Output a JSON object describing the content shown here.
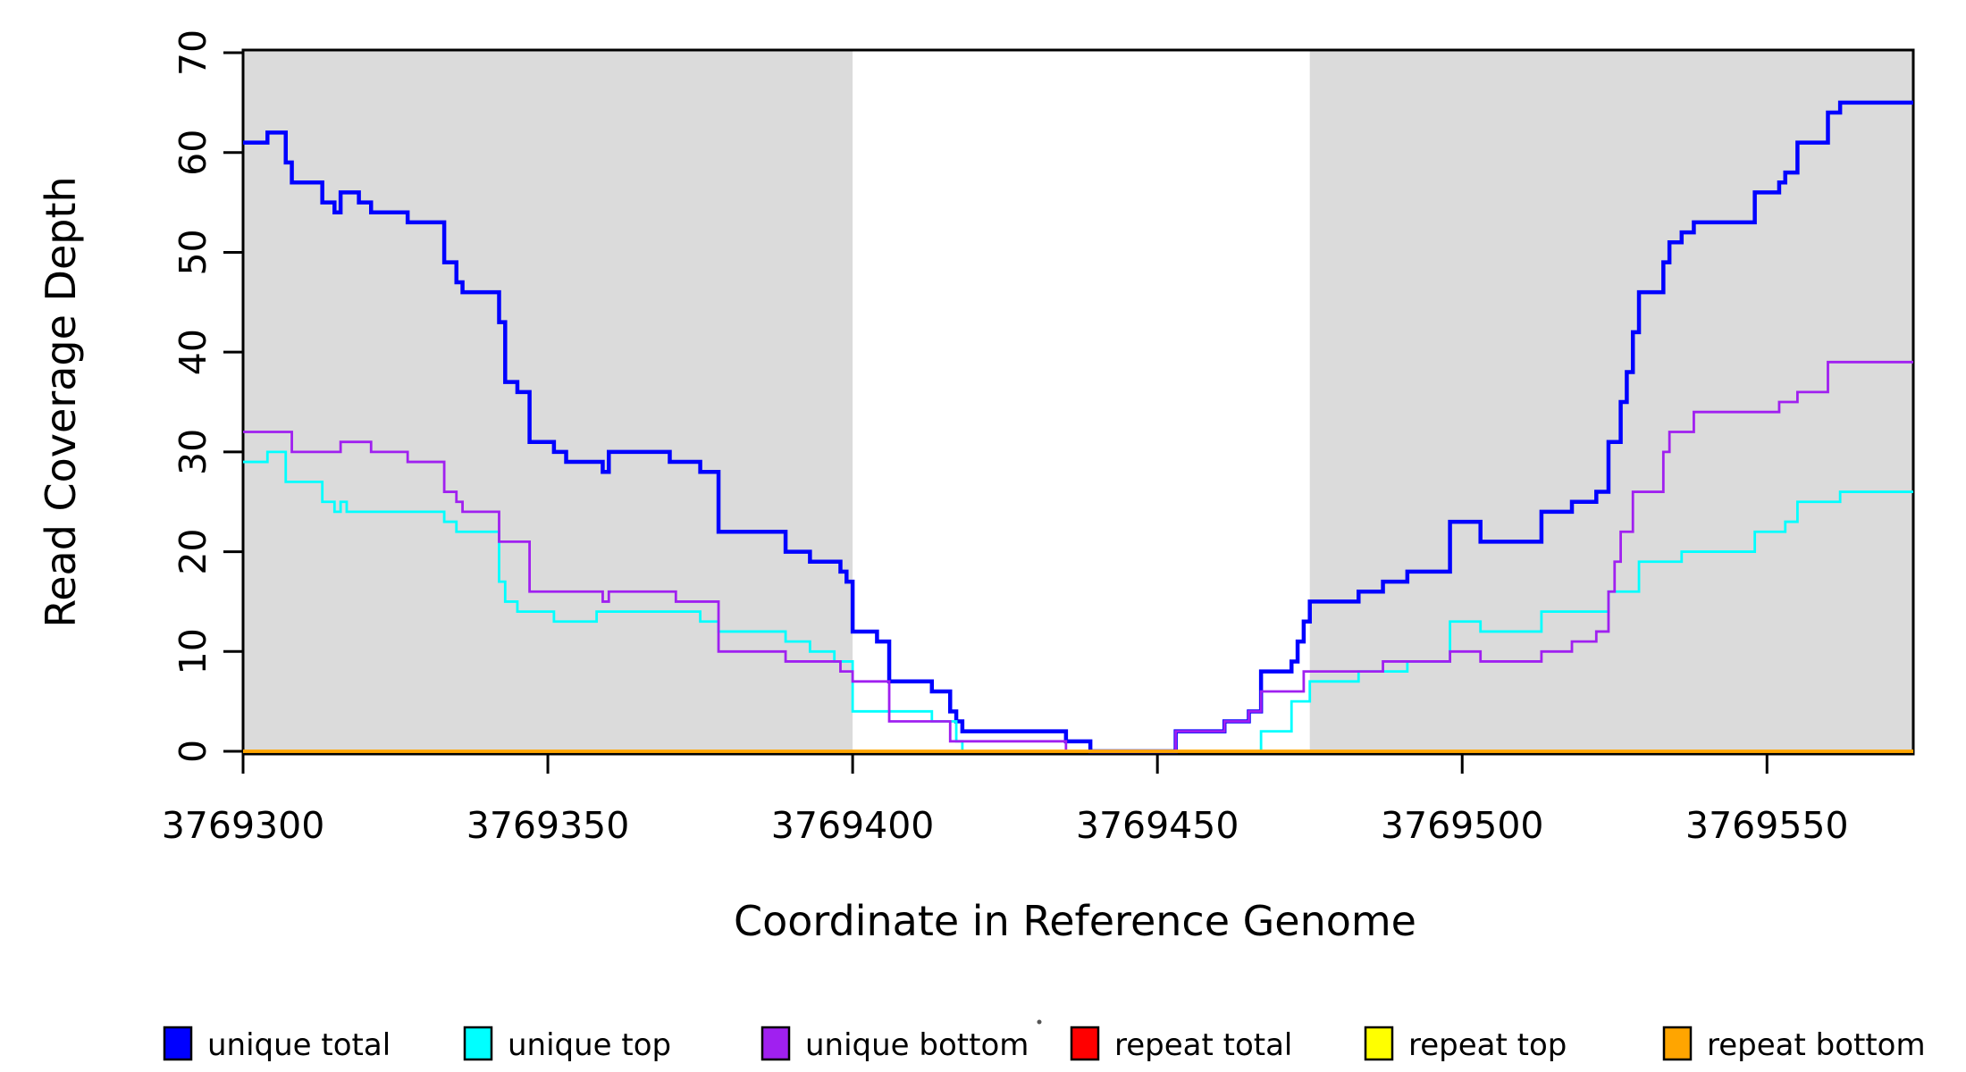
{
  "chart_data": {
    "type": "line",
    "subtype": "step",
    "title": "",
    "xlabel": "Coordinate in Reference Genome",
    "ylabel": "Read Coverage Depth",
    "xlim": [
      3769300,
      3769574
    ],
    "ylim": [
      0,
      70
    ],
    "grid": false,
    "background": "#FFFFFF",
    "x_ticks": [
      "3769300",
      "3769350",
      "3769400",
      "3769450",
      "3769500",
      "3769550"
    ],
    "x_tick_values": [
      3769300,
      3769350,
      3769400,
      3769450,
      3769500,
      3769550
    ],
    "y_ticks": [
      "0",
      "10",
      "20",
      "30",
      "40",
      "50",
      "60",
      "70"
    ],
    "y_tick_values": [
      0,
      10,
      20,
      30,
      40,
      50,
      60,
      70
    ],
    "shaded_regions": [
      {
        "from": 3769300,
        "to": 3769400,
        "color": "#DBDBDB"
      },
      {
        "from": 3769475,
        "to": 3769574,
        "color": "#DBDBDB"
      }
    ],
    "legend_position": "bottom",
    "series": [
      {
        "name": "unique total",
        "color": "#0000FF",
        "width": 4.5,
        "points": [
          [
            3769300,
            61
          ],
          [
            3769304,
            62
          ],
          [
            3769307,
            59
          ],
          [
            3769308,
            57
          ],
          [
            3769313,
            55
          ],
          [
            3769315,
            54
          ],
          [
            3769316,
            56
          ],
          [
            3769319,
            55
          ],
          [
            3769321,
            54
          ],
          [
            3769327,
            53
          ],
          [
            3769333,
            49
          ],
          [
            3769335,
            47
          ],
          [
            3769336,
            46
          ],
          [
            3769342,
            43
          ],
          [
            3769343,
            37
          ],
          [
            3769345,
            36
          ],
          [
            3769347,
            31
          ],
          [
            3769351,
            30
          ],
          [
            3769353,
            29
          ],
          [
            3769359,
            28
          ],
          [
            3769360,
            30
          ],
          [
            3769370,
            29
          ],
          [
            3769375,
            28
          ],
          [
            3769378,
            22
          ],
          [
            3769389,
            20
          ],
          [
            3769393,
            19
          ],
          [
            3769398,
            18
          ],
          [
            3769399,
            17
          ],
          [
            3769400,
            12
          ],
          [
            3769404,
            11
          ],
          [
            3769406,
            7
          ],
          [
            3769413,
            6
          ],
          [
            3769416,
            4
          ],
          [
            3769417,
            3
          ],
          [
            3769418,
            2
          ],
          [
            3769435,
            1
          ],
          [
            3769439,
            0
          ],
          [
            3769453,
            2
          ],
          [
            3769461,
            3
          ],
          [
            3769465,
            4
          ],
          [
            3769467,
            8
          ],
          [
            3769472,
            9
          ],
          [
            3769473,
            11
          ],
          [
            3769474,
            13
          ],
          [
            3769475,
            15
          ],
          [
            3769483,
            16
          ],
          [
            3769487,
            17
          ],
          [
            3769491,
            18
          ],
          [
            3769498,
            23
          ],
          [
            3769503,
            21
          ],
          [
            3769513,
            24
          ],
          [
            3769518,
            25
          ],
          [
            3769522,
            26
          ],
          [
            3769524,
            31
          ],
          [
            3769526,
            35
          ],
          [
            3769527,
            38
          ],
          [
            3769528,
            42
          ],
          [
            3769529,
            46
          ],
          [
            3769533,
            49
          ],
          [
            3769534,
            51
          ],
          [
            3769536,
            52
          ],
          [
            3769538,
            53
          ],
          [
            3769548,
            56
          ],
          [
            3769552,
            57
          ],
          [
            3769553,
            58
          ],
          [
            3769555,
            61
          ],
          [
            3769560,
            64
          ],
          [
            3769562,
            65
          ]
        ]
      },
      {
        "name": "unique top",
        "color": "#00FFFF",
        "width": 2.8,
        "points": [
          [
            3769300,
            29
          ],
          [
            3769304,
            30
          ],
          [
            3769307,
            27
          ],
          [
            3769313,
            25
          ],
          [
            3769315,
            24
          ],
          [
            3769316,
            25
          ],
          [
            3769317,
            24
          ],
          [
            3769333,
            23
          ],
          [
            3769335,
            22
          ],
          [
            3769342,
            17
          ],
          [
            3769343,
            15
          ],
          [
            3769345,
            14
          ],
          [
            3769351,
            13
          ],
          [
            3769358,
            14
          ],
          [
            3769375,
            13
          ],
          [
            3769378,
            12
          ],
          [
            3769389,
            11
          ],
          [
            3769393,
            10
          ],
          [
            3769397,
            9
          ],
          [
            3769400,
            4
          ],
          [
            3769413,
            3
          ],
          [
            3769417,
            1
          ],
          [
            3769418,
            0
          ],
          [
            3769467,
            2
          ],
          [
            3769472,
            5
          ],
          [
            3769475,
            7
          ],
          [
            3769483,
            8
          ],
          [
            3769491,
            9
          ],
          [
            3769498,
            13
          ],
          [
            3769503,
            12
          ],
          [
            3769513,
            14
          ],
          [
            3769524,
            16
          ],
          [
            3769529,
            19
          ],
          [
            3769536,
            20
          ],
          [
            3769548,
            22
          ],
          [
            3769553,
            23
          ],
          [
            3769555,
            25
          ],
          [
            3769562,
            26
          ]
        ]
      },
      {
        "name": "unique bottom",
        "color": "#A020F0",
        "width": 2.8,
        "points": [
          [
            3769300,
            32
          ],
          [
            3769308,
            30
          ],
          [
            3769316,
            31
          ],
          [
            3769321,
            30
          ],
          [
            3769327,
            29
          ],
          [
            3769333,
            26
          ],
          [
            3769335,
            25
          ],
          [
            3769336,
            24
          ],
          [
            3769342,
            21
          ],
          [
            3769347,
            16
          ],
          [
            3769359,
            15
          ],
          [
            3769360,
            16
          ],
          [
            3769371,
            15
          ],
          [
            3769378,
            10
          ],
          [
            3769389,
            9
          ],
          [
            3769398,
            8
          ],
          [
            3769400,
            7
          ],
          [
            3769406,
            3
          ],
          [
            3769416,
            1
          ],
          [
            3769435,
            0
          ],
          [
            3769453,
            2
          ],
          [
            3769461,
            3
          ],
          [
            3769465,
            4
          ],
          [
            3769467,
            6
          ],
          [
            3769474,
            8
          ],
          [
            3769487,
            9
          ],
          [
            3769498,
            10
          ],
          [
            3769503,
            9
          ],
          [
            3769513,
            10
          ],
          [
            3769518,
            11
          ],
          [
            3769522,
            12
          ],
          [
            3769524,
            16
          ],
          [
            3769525,
            19
          ],
          [
            3769526,
            22
          ],
          [
            3769528,
            26
          ],
          [
            3769533,
            30
          ],
          [
            3769534,
            32
          ],
          [
            3769538,
            34
          ],
          [
            3769552,
            35
          ],
          [
            3769555,
            36
          ],
          [
            3769560,
            39
          ]
        ]
      },
      {
        "name": "repeat total",
        "color": "#FF0000",
        "width": 3.5,
        "points": [
          [
            3769300,
            0
          ]
        ]
      },
      {
        "name": "repeat top",
        "color": "#FFFF00",
        "width": 3.5,
        "points": [
          [
            3769300,
            0
          ]
        ]
      },
      {
        "name": "repeat bottom",
        "color": "#FFA500",
        "width": 3.5,
        "points": [
          [
            3769300,
            0
          ]
        ]
      }
    ]
  }
}
